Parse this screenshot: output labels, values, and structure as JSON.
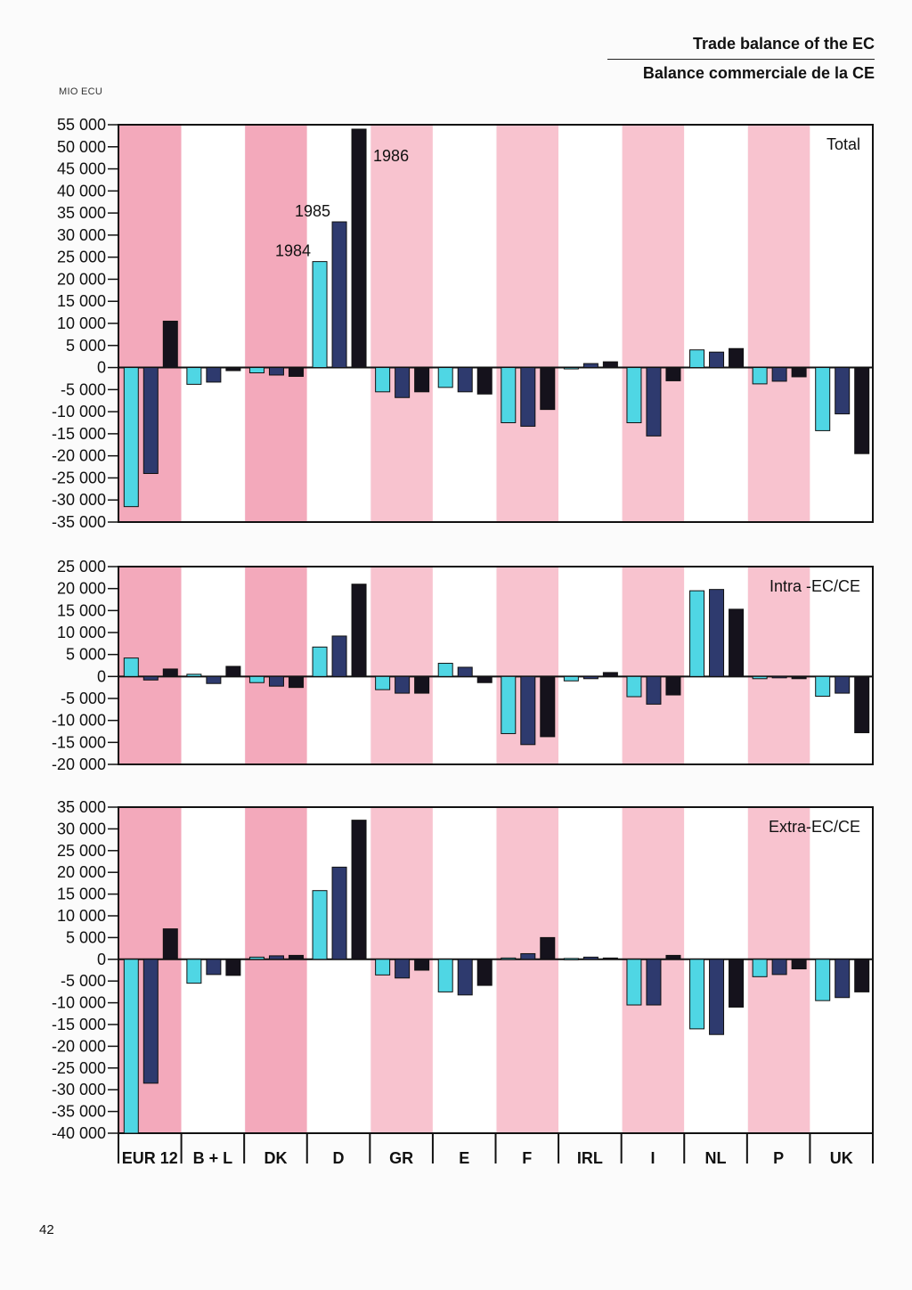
{
  "header": {
    "title_en": "Trade balance of the EC",
    "title_fr": "Balance commerciale de la CE",
    "unit": "MIO ECU"
  },
  "page_number": "42",
  "colors": {
    "y1984": "#4fd6e4",
    "y1985": "#2e3a6e",
    "y1986": "#15121c",
    "band": "#f3a9bb",
    "band_light": "#f8c3cf"
  },
  "chart_data": [
    {
      "type": "bar",
      "title": "Total",
      "categories": [
        "EUR 12",
        "B + L",
        "DK",
        "D",
        "GR",
        "E",
        "F",
        "IRL",
        "I",
        "NL",
        "P",
        "UK"
      ],
      "series": [
        {
          "name": "1984",
          "values": [
            -31500,
            -3800,
            -1200,
            24000,
            -5500,
            -4500,
            -12500,
            -300,
            -12500,
            4000,
            -3700,
            -14300
          ]
        },
        {
          "name": "1985",
          "values": [
            -24000,
            -3300,
            -1700,
            33000,
            -6800,
            -5500,
            -13300,
            900,
            -15500,
            3500,
            -3100,
            -10500
          ]
        },
        {
          "name": "1986",
          "values": [
            10500,
            -700,
            -2000,
            54000,
            -5500,
            -6000,
            -9500,
            1300,
            -3000,
            4300,
            -2100,
            -19500
          ]
        }
      ],
      "ylim": [
        -35000,
        55000
      ],
      "yticks": [
        55000,
        50000,
        45000,
        40000,
        35000,
        30000,
        25000,
        20000,
        15000,
        10000,
        5000,
        0,
        -5000,
        -10000,
        -15000,
        -20000,
        -25000,
        -30000,
        -35000
      ],
      "ytick_labels": [
        "55 000",
        "50 000",
        "45 000",
        "40 000",
        "35 000",
        "30 000",
        "25 000",
        "20 000",
        "15 000",
        "10 000",
        "5 000",
        "0",
        "-5 000",
        "-10 000",
        "-15 000",
        "-20 000",
        "-25 000",
        "-30 000",
        "-35 000"
      ],
      "year_labels": [
        "1984",
        "1985",
        "1986"
      ]
    },
    {
      "type": "bar",
      "title": "Intra -EC/CE",
      "categories": [
        "EUR 12",
        "B + L",
        "DK",
        "D",
        "GR",
        "E",
        "F",
        "IRL",
        "I",
        "NL",
        "P",
        "UK"
      ],
      "series": [
        {
          "name": "1984",
          "values": [
            4200,
            500,
            -1400,
            6700,
            -3000,
            3000,
            -13000,
            -1000,
            -4600,
            19500,
            -500,
            -4500
          ]
        },
        {
          "name": "1985",
          "values": [
            -800,
            -1600,
            -2200,
            9200,
            -3800,
            2100,
            -15500,
            -500,
            -6300,
            19800,
            -300,
            -3800
          ]
        },
        {
          "name": "1986",
          "values": [
            1700,
            2300,
            -2500,
            21000,
            -3800,
            -1400,
            -13700,
            900,
            -4200,
            15300,
            -500,
            -12800
          ]
        }
      ],
      "ylim": [
        -20000,
        25000
      ],
      "yticks": [
        25000,
        20000,
        15000,
        10000,
        5000,
        0,
        -5000,
        -10000,
        -15000,
        -20000
      ],
      "ytick_labels": [
        "25 000",
        "20 000",
        "15 000",
        "10 000",
        "5 000",
        "0",
        "-5 000",
        "-10 000",
        "-15 000",
        "-20 000"
      ]
    },
    {
      "type": "bar",
      "title": "Extra-EC/CE",
      "categories": [
        "EUR 12",
        "B + L",
        "DK",
        "D",
        "GR",
        "E",
        "F",
        "IRL",
        "I",
        "NL",
        "P",
        "UK"
      ],
      "series": [
        {
          "name": "1984",
          "values": [
            -40000,
            -5500,
            500,
            15800,
            -3600,
            -7500,
            300,
            200,
            -10500,
            -16000,
            -4000,
            -9500
          ]
        },
        {
          "name": "1985",
          "values": [
            -28500,
            -3500,
            800,
            21200,
            -4300,
            -8200,
            1300,
            500,
            -10500,
            -17300,
            -3500,
            -8800
          ]
        },
        {
          "name": "1986",
          "values": [
            7000,
            -3700,
            900,
            32000,
            -2500,
            -6000,
            5000,
            300,
            900,
            -11000,
            -2200,
            -7500
          ]
        }
      ],
      "ylim": [
        -40000,
        35000
      ],
      "yticks": [
        35000,
        30000,
        25000,
        20000,
        15000,
        10000,
        5000,
        0,
        -5000,
        -10000,
        -15000,
        -20000,
        -25000,
        -30000,
        -35000,
        -40000
      ],
      "ytick_labels": [
        "35 000",
        "30 000",
        "25 000",
        "20 000",
        "15 000",
        "10 000",
        "5 000",
        "0",
        "-5 000",
        "-10 000",
        "-15 000",
        "-20 000",
        "-25 000",
        "-30 000",
        "-35 000",
        "-40 000"
      ]
    }
  ],
  "x_axis": {
    "labels": [
      "EUR 12",
      "B + L",
      "DK",
      "D",
      "GR",
      "E",
      "F",
      "IRL",
      "I",
      "NL",
      "P",
      "UK"
    ]
  }
}
